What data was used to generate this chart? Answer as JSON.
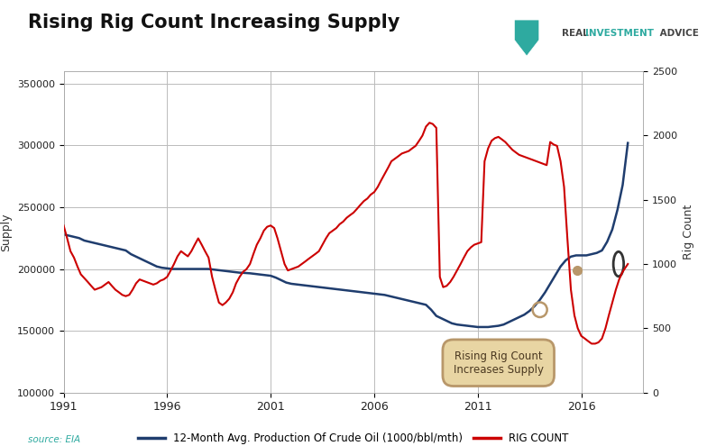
{
  "title": "Rising Rig Count Increasing Supply",
  "source": "source: EIA",
  "ylabel_left": "Supply",
  "ylabel_right": "Rig Count",
  "xlabel_years": [
    1991,
    1996,
    2001,
    2006,
    2011,
    2016
  ],
  "legend_blue": "12-Month Avg. Production Of Crude Oil (1000/bbl/mth)",
  "legend_red": "RIG COUNT",
  "bg_color": "#ffffff",
  "plot_bg_color": "#ffffff",
  "grid_color": "#bbbbbb",
  "title_color": "#1a1a1a",
  "blue_color": "#1f3d6e",
  "red_color": "#cc0000",
  "annotation_text": "Rising Rig Count\nIncreases Supply",
  "annotation_face": "#e8d5a3",
  "annotation_edge": "#b8976a",
  "ylim_left": [
    100000,
    360000
  ],
  "ylim_right": [
    0,
    2500
  ],
  "yticks_left": [
    100000,
    150000,
    200000,
    250000,
    300000,
    350000
  ],
  "yticks_right": [
    0,
    500,
    1000,
    1500,
    2000,
    2500
  ],
  "logo_color": "#2eaaa0",
  "logo_text_color": "#444444",
  "logo_invest_color": "#2eaaa0",
  "supply_years": [
    1991.0,
    1991.25,
    1991.5,
    1991.75,
    1992.0,
    1992.25,
    1992.5,
    1992.75,
    1993.0,
    1993.25,
    1993.5,
    1993.75,
    1994.0,
    1994.25,
    1994.5,
    1994.75,
    1995.0,
    1995.25,
    1995.5,
    1995.75,
    1996.0,
    1996.25,
    1996.5,
    1996.75,
    1997.0,
    1997.25,
    1997.5,
    1997.75,
    1998.0,
    1998.25,
    1998.5,
    1998.75,
    1999.0,
    1999.25,
    1999.5,
    1999.75,
    2000.0,
    2000.25,
    2000.5,
    2000.75,
    2001.0,
    2001.25,
    2001.5,
    2001.75,
    2002.0,
    2002.25,
    2002.5,
    2002.75,
    2003.0,
    2003.25,
    2003.5,
    2003.75,
    2004.0,
    2004.25,
    2004.5,
    2004.75,
    2005.0,
    2005.25,
    2005.5,
    2005.75,
    2006.0,
    2006.25,
    2006.5,
    2006.75,
    2007.0,
    2007.25,
    2007.5,
    2007.75,
    2008.0,
    2008.25,
    2008.5,
    2008.75,
    2009.0,
    2009.25,
    2009.5,
    2009.75,
    2010.0,
    2010.25,
    2010.5,
    2010.75,
    2011.0,
    2011.25,
    2011.5,
    2011.75,
    2012.0,
    2012.25,
    2012.5,
    2012.75,
    2013.0,
    2013.25,
    2013.5,
    2013.75,
    2014.0,
    2014.25,
    2014.5,
    2014.75,
    2015.0,
    2015.25,
    2015.5,
    2015.75,
    2016.0,
    2016.25,
    2016.5,
    2016.75,
    2017.0,
    2017.25,
    2017.5,
    2017.75,
    2018.0,
    2018.25
  ],
  "supply_vals": [
    228000,
    227000,
    226000,
    225000,
    223000,
    222000,
    221000,
    220000,
    219000,
    218000,
    217000,
    216000,
    215000,
    212000,
    210000,
    208000,
    206000,
    204000,
    202000,
    201000,
    200500,
    200000,
    200000,
    200000,
    200000,
    200000,
    200000,
    200000,
    200000,
    199500,
    199000,
    198500,
    198000,
    197500,
    197000,
    196800,
    196500,
    196000,
    195500,
    195000,
    194500,
    193000,
    191000,
    189000,
    188000,
    187500,
    187000,
    186500,
    186000,
    185500,
    185000,
    184500,
    184000,
    183500,
    183000,
    182500,
    182000,
    181500,
    181000,
    180500,
    180000,
    179500,
    179000,
    178000,
    177000,
    176000,
    175000,
    174000,
    173000,
    172000,
    171000,
    167000,
    162000,
    160000,
    158000,
    156000,
    155000,
    154500,
    154000,
    153500,
    153000,
    153000,
    153000,
    153500,
    154000,
    155000,
    157000,
    159000,
    161000,
    163000,
    166000,
    170000,
    175000,
    181000,
    188000,
    195000,
    202000,
    207000,
    210000,
    211000,
    211000,
    211000,
    212000,
    213000,
    215000,
    222000,
    232000,
    248000,
    268000,
    302000
  ],
  "rig_years": [
    1991.0,
    1991.17,
    1991.33,
    1991.5,
    1991.67,
    1991.83,
    1992.0,
    1992.17,
    1992.33,
    1992.5,
    1992.67,
    1992.83,
    1993.0,
    1993.17,
    1993.33,
    1993.5,
    1993.67,
    1993.83,
    1994.0,
    1994.17,
    1994.33,
    1994.5,
    1994.67,
    1994.83,
    1995.0,
    1995.17,
    1995.33,
    1995.5,
    1995.67,
    1995.83,
    1996.0,
    1996.17,
    1996.33,
    1996.5,
    1996.67,
    1996.83,
    1997.0,
    1997.17,
    1997.33,
    1997.5,
    1997.67,
    1997.83,
    1998.0,
    1998.17,
    1998.33,
    1998.5,
    1998.67,
    1998.83,
    1999.0,
    1999.17,
    1999.33,
    1999.5,
    1999.67,
    1999.83,
    2000.0,
    2000.17,
    2000.33,
    2000.5,
    2000.67,
    2000.83,
    2001.0,
    2001.17,
    2001.33,
    2001.5,
    2001.67,
    2001.83,
    2002.0,
    2002.17,
    2002.33,
    2002.5,
    2002.67,
    2002.83,
    2003.0,
    2003.17,
    2003.33,
    2003.5,
    2003.67,
    2003.83,
    2004.0,
    2004.17,
    2004.33,
    2004.5,
    2004.67,
    2004.83,
    2005.0,
    2005.17,
    2005.33,
    2005.5,
    2005.67,
    2005.83,
    2006.0,
    2006.17,
    2006.33,
    2006.5,
    2006.67,
    2006.83,
    2007.0,
    2007.17,
    2007.33,
    2007.5,
    2007.67,
    2007.83,
    2008.0,
    2008.17,
    2008.33,
    2008.5,
    2008.67,
    2008.83,
    2009.0,
    2009.17,
    2009.33,
    2009.5,
    2009.67,
    2009.83,
    2010.0,
    2010.17,
    2010.33,
    2010.5,
    2010.67,
    2010.83,
    2011.0,
    2011.17,
    2011.33,
    2011.5,
    2011.67,
    2011.83,
    2012.0,
    2012.17,
    2012.33,
    2012.5,
    2012.67,
    2012.83,
    2013.0,
    2013.17,
    2013.33,
    2013.5,
    2013.67,
    2013.83,
    2014.0,
    2014.17,
    2014.33,
    2014.5,
    2014.67,
    2014.83,
    2015.0,
    2015.17,
    2015.33,
    2015.5,
    2015.67,
    2015.83,
    2016.0,
    2016.17,
    2016.33,
    2016.5,
    2016.67,
    2016.83,
    2017.0,
    2017.17,
    2017.33,
    2017.5,
    2017.67,
    2017.83,
    2018.0,
    2018.17,
    2018.25
  ],
  "rig_vals": [
    1300,
    1200,
    1100,
    1050,
    980,
    920,
    890,
    860,
    830,
    800,
    810,
    820,
    840,
    860,
    830,
    800,
    780,
    760,
    750,
    760,
    800,
    850,
    880,
    870,
    860,
    850,
    840,
    850,
    870,
    880,
    900,
    950,
    1000,
    1060,
    1100,
    1080,
    1060,
    1100,
    1150,
    1200,
    1150,
    1100,
    1050,
    900,
    800,
    700,
    680,
    700,
    730,
    780,
    850,
    900,
    940,
    960,
    1000,
    1080,
    1150,
    1200,
    1260,
    1290,
    1300,
    1280,
    1200,
    1100,
    1000,
    950,
    960,
    970,
    980,
    1000,
    1020,
    1040,
    1060,
    1080,
    1100,
    1150,
    1200,
    1240,
    1260,
    1280,
    1310,
    1330,
    1360,
    1380,
    1400,
    1430,
    1460,
    1490,
    1510,
    1540,
    1560,
    1600,
    1650,
    1700,
    1750,
    1800,
    1820,
    1840,
    1860,
    1870,
    1880,
    1900,
    1920,
    1960,
    2000,
    2070,
    2100,
    2090,
    2060,
    900,
    820,
    830,
    860,
    900,
    950,
    1000,
    1050,
    1100,
    1130,
    1150,
    1160,
    1170,
    1800,
    1900,
    1960,
    1980,
    1990,
    1970,
    1950,
    1920,
    1890,
    1870,
    1850,
    1840,
    1830,
    1820,
    1810,
    1800,
    1790,
    1780,
    1770,
    1950,
    1930,
    1920,
    1800,
    1600,
    1200,
    800,
    600,
    500,
    440,
    420,
    400,
    380,
    380,
    390,
    420,
    500,
    600,
    700,
    800,
    880,
    940,
    980,
    1000
  ]
}
